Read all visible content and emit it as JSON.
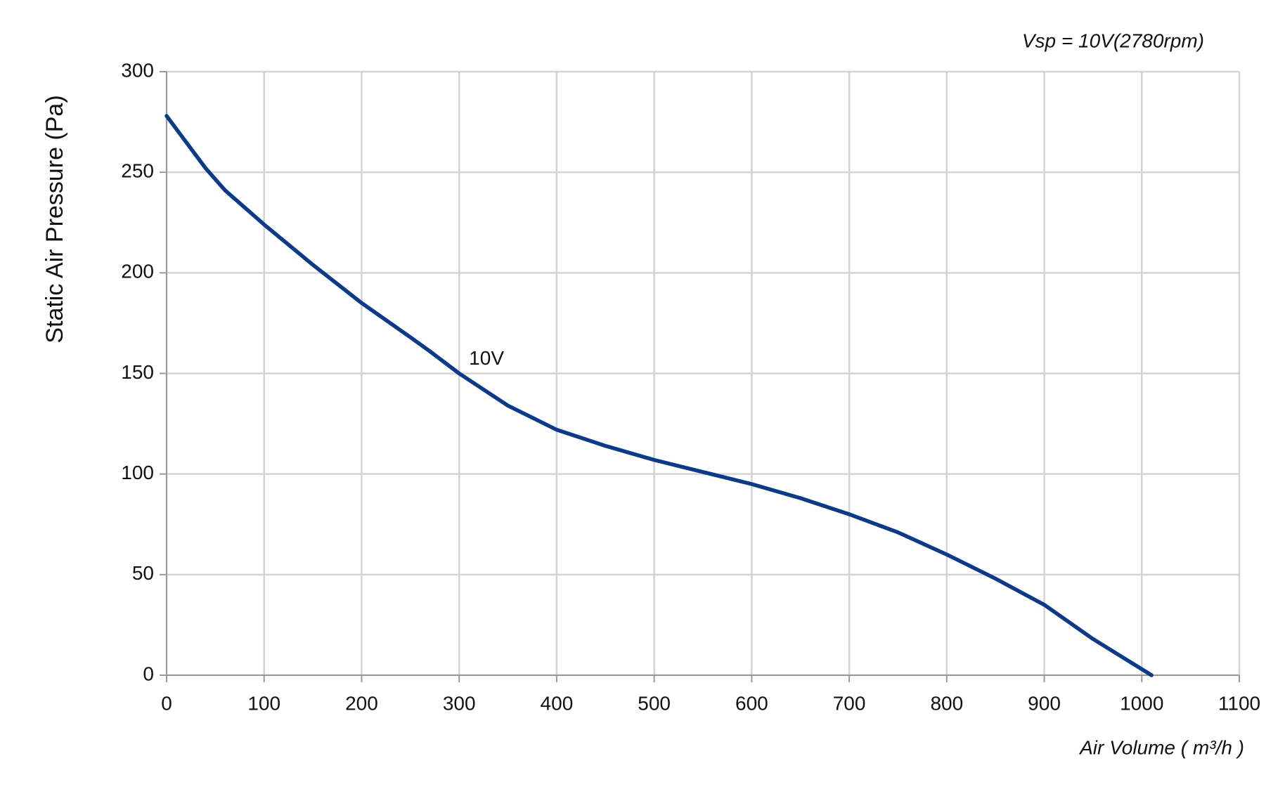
{
  "chart_data": {
    "type": "line",
    "title": "Vsp = 10V(2780rpm)",
    "x_label": "Air Volume ( m³/h )",
    "y_label": "Static Air Pressure  (Pa)",
    "x": [
      0,
      20,
      40,
      60,
      100,
      150,
      200,
      250,
      270,
      300,
      350,
      400,
      450,
      500,
      550,
      600,
      650,
      700,
      750,
      800,
      850,
      900,
      950,
      1010
    ],
    "series": [
      {
        "name": "10V",
        "color": "#0b3a88",
        "values": [
          278,
          265,
          252,
          241,
          224,
          204,
          185,
          168,
          161,
          150,
          134,
          122,
          114,
          107,
          101,
          95,
          88,
          80,
          71,
          60,
          48,
          35,
          18,
          0
        ]
      }
    ],
    "xlim": [
      0,
      1100
    ],
    "xticks": [
      0,
      100,
      200,
      300,
      400,
      500,
      600,
      700,
      800,
      900,
      1000,
      1100
    ],
    "ylim": [
      0,
      300
    ],
    "yticks": [
      0,
      50,
      100,
      150,
      200,
      250,
      300
    ],
    "grid": true
  }
}
